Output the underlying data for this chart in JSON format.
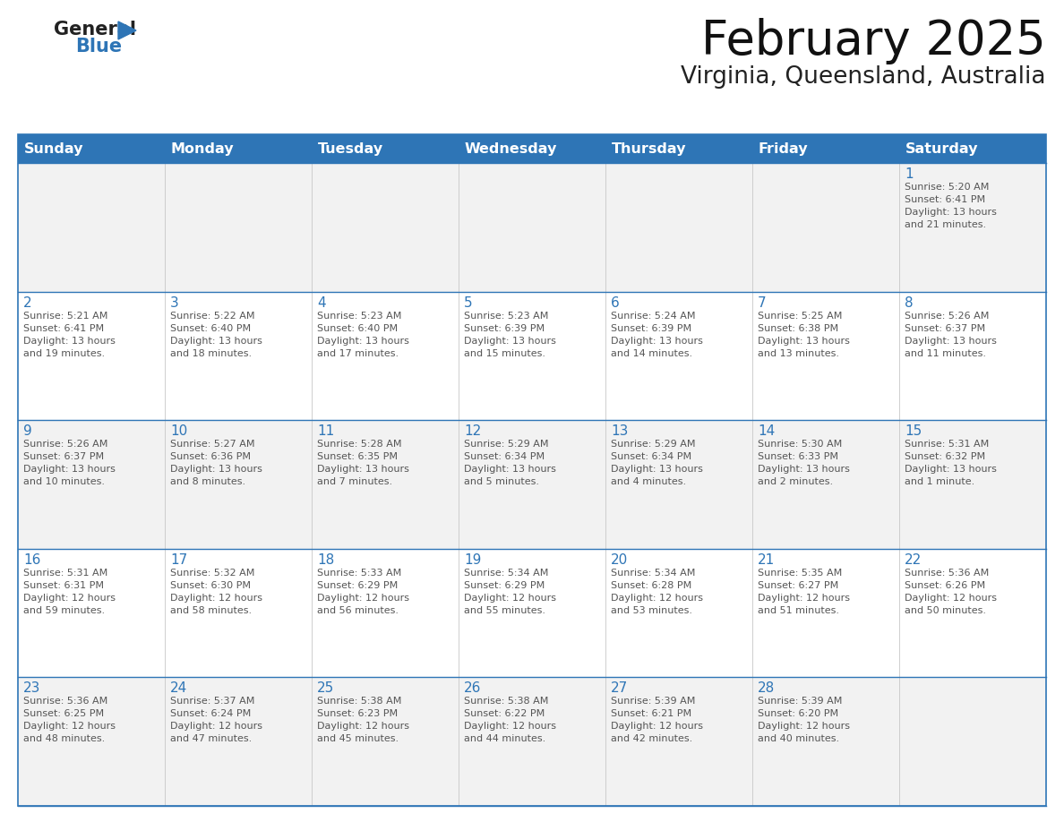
{
  "title": "February 2025",
  "subtitle": "Virginia, Queensland, Australia",
  "header_color": "#2e75b6",
  "header_text_color": "#ffffff",
  "cell_bg_even": "#f2f2f2",
  "cell_bg_odd": "#ffffff",
  "day_number_color": "#2e75b6",
  "text_color": "#555555",
  "border_color": "#2e75b6",
  "line_color": "#aaaacc",
  "days_of_week": [
    "Sunday",
    "Monday",
    "Tuesday",
    "Wednesday",
    "Thursday",
    "Friday",
    "Saturday"
  ],
  "weeks": [
    [
      {
        "day": null,
        "info": null
      },
      {
        "day": null,
        "info": null
      },
      {
        "day": null,
        "info": null
      },
      {
        "day": null,
        "info": null
      },
      {
        "day": null,
        "info": null
      },
      {
        "day": null,
        "info": null
      },
      {
        "day": 1,
        "info": "Sunrise: 5:20 AM\nSunset: 6:41 PM\nDaylight: 13 hours\nand 21 minutes."
      }
    ],
    [
      {
        "day": 2,
        "info": "Sunrise: 5:21 AM\nSunset: 6:41 PM\nDaylight: 13 hours\nand 19 minutes."
      },
      {
        "day": 3,
        "info": "Sunrise: 5:22 AM\nSunset: 6:40 PM\nDaylight: 13 hours\nand 18 minutes."
      },
      {
        "day": 4,
        "info": "Sunrise: 5:23 AM\nSunset: 6:40 PM\nDaylight: 13 hours\nand 17 minutes."
      },
      {
        "day": 5,
        "info": "Sunrise: 5:23 AM\nSunset: 6:39 PM\nDaylight: 13 hours\nand 15 minutes."
      },
      {
        "day": 6,
        "info": "Sunrise: 5:24 AM\nSunset: 6:39 PM\nDaylight: 13 hours\nand 14 minutes."
      },
      {
        "day": 7,
        "info": "Sunrise: 5:25 AM\nSunset: 6:38 PM\nDaylight: 13 hours\nand 13 minutes."
      },
      {
        "day": 8,
        "info": "Sunrise: 5:26 AM\nSunset: 6:37 PM\nDaylight: 13 hours\nand 11 minutes."
      }
    ],
    [
      {
        "day": 9,
        "info": "Sunrise: 5:26 AM\nSunset: 6:37 PM\nDaylight: 13 hours\nand 10 minutes."
      },
      {
        "day": 10,
        "info": "Sunrise: 5:27 AM\nSunset: 6:36 PM\nDaylight: 13 hours\nand 8 minutes."
      },
      {
        "day": 11,
        "info": "Sunrise: 5:28 AM\nSunset: 6:35 PM\nDaylight: 13 hours\nand 7 minutes."
      },
      {
        "day": 12,
        "info": "Sunrise: 5:29 AM\nSunset: 6:34 PM\nDaylight: 13 hours\nand 5 minutes."
      },
      {
        "day": 13,
        "info": "Sunrise: 5:29 AM\nSunset: 6:34 PM\nDaylight: 13 hours\nand 4 minutes."
      },
      {
        "day": 14,
        "info": "Sunrise: 5:30 AM\nSunset: 6:33 PM\nDaylight: 13 hours\nand 2 minutes."
      },
      {
        "day": 15,
        "info": "Sunrise: 5:31 AM\nSunset: 6:32 PM\nDaylight: 13 hours\nand 1 minute."
      }
    ],
    [
      {
        "day": 16,
        "info": "Sunrise: 5:31 AM\nSunset: 6:31 PM\nDaylight: 12 hours\nand 59 minutes."
      },
      {
        "day": 17,
        "info": "Sunrise: 5:32 AM\nSunset: 6:30 PM\nDaylight: 12 hours\nand 58 minutes."
      },
      {
        "day": 18,
        "info": "Sunrise: 5:33 AM\nSunset: 6:29 PM\nDaylight: 12 hours\nand 56 minutes."
      },
      {
        "day": 19,
        "info": "Sunrise: 5:34 AM\nSunset: 6:29 PM\nDaylight: 12 hours\nand 55 minutes."
      },
      {
        "day": 20,
        "info": "Sunrise: 5:34 AM\nSunset: 6:28 PM\nDaylight: 12 hours\nand 53 minutes."
      },
      {
        "day": 21,
        "info": "Sunrise: 5:35 AM\nSunset: 6:27 PM\nDaylight: 12 hours\nand 51 minutes."
      },
      {
        "day": 22,
        "info": "Sunrise: 5:36 AM\nSunset: 6:26 PM\nDaylight: 12 hours\nand 50 minutes."
      }
    ],
    [
      {
        "day": 23,
        "info": "Sunrise: 5:36 AM\nSunset: 6:25 PM\nDaylight: 12 hours\nand 48 minutes."
      },
      {
        "day": 24,
        "info": "Sunrise: 5:37 AM\nSunset: 6:24 PM\nDaylight: 12 hours\nand 47 minutes."
      },
      {
        "day": 25,
        "info": "Sunrise: 5:38 AM\nSunset: 6:23 PM\nDaylight: 12 hours\nand 45 minutes."
      },
      {
        "day": 26,
        "info": "Sunrise: 5:38 AM\nSunset: 6:22 PM\nDaylight: 12 hours\nand 44 minutes."
      },
      {
        "day": 27,
        "info": "Sunrise: 5:39 AM\nSunset: 6:21 PM\nDaylight: 12 hours\nand 42 minutes."
      },
      {
        "day": 28,
        "info": "Sunrise: 5:39 AM\nSunset: 6:20 PM\nDaylight: 12 hours\nand 40 minutes."
      },
      {
        "day": null,
        "info": null
      }
    ]
  ]
}
